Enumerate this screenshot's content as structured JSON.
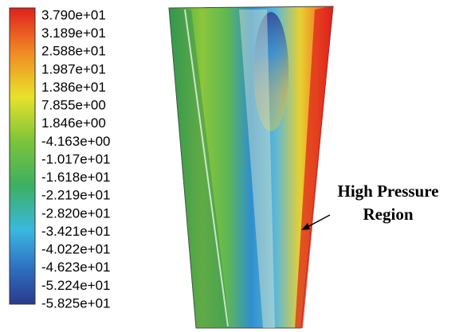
{
  "colorbar": {
    "labels": [
      "3.790e+01",
      "3.189e+01",
      "2.588e+01",
      "1.987e+01",
      "1.386e+01",
      "7.855e+00",
      "1.846e+00",
      "-4.163e+00",
      "-1.017e+01",
      "-1.618e+01",
      "-2.219e+01",
      "-2.820e+01",
      "-3.421e+01",
      "-4.022e+01",
      "-4.623e+01",
      "-5.224e+01",
      "-5.825e+01"
    ]
  },
  "annotation": {
    "lines": [
      "High Pressure",
      "Region"
    ]
  }
}
